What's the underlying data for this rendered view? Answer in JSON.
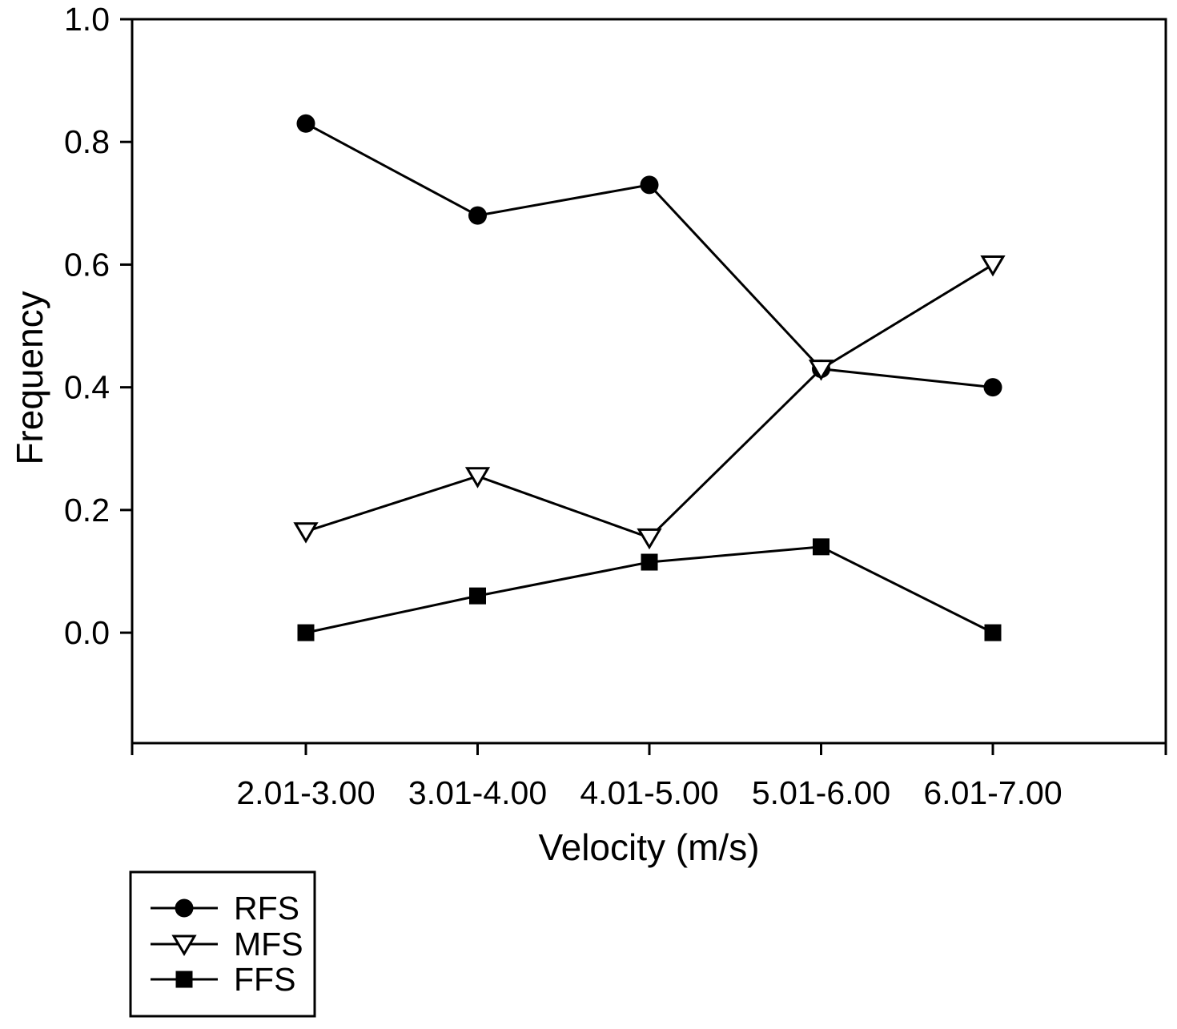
{
  "chart_data": {
    "type": "line",
    "title": "",
    "xlabel": "Velocity (m/s)",
    "ylabel": "Frequency",
    "categories": [
      "2.01-3.00",
      "3.01-4.00",
      "4.01-5.00",
      "5.01-6.00",
      "6.01-7.00"
    ],
    "series": [
      {
        "name": "RFS",
        "marker": "filled-circle",
        "values": [
          0.83,
          0.68,
          0.73,
          0.43,
          0.4
        ]
      },
      {
        "name": "MFS",
        "marker": "open-triangle-down",
        "values": [
          0.165,
          0.255,
          0.155,
          0.43,
          0.6
        ]
      },
      {
        "name": "FFS",
        "marker": "filled-square",
        "values": [
          0.0,
          0.06,
          0.115,
          0.14,
          0.0
        ]
      }
    ],
    "y_ticks": [
      "0.0",
      "0.2",
      "0.4",
      "0.6",
      "0.8",
      "1.0"
    ],
    "ylim": [
      -0.18,
      1.0
    ],
    "grid": false,
    "legend_position": "bottom-left",
    "colors": {
      "foreground": "#000000",
      "background": "#ffffff"
    }
  }
}
